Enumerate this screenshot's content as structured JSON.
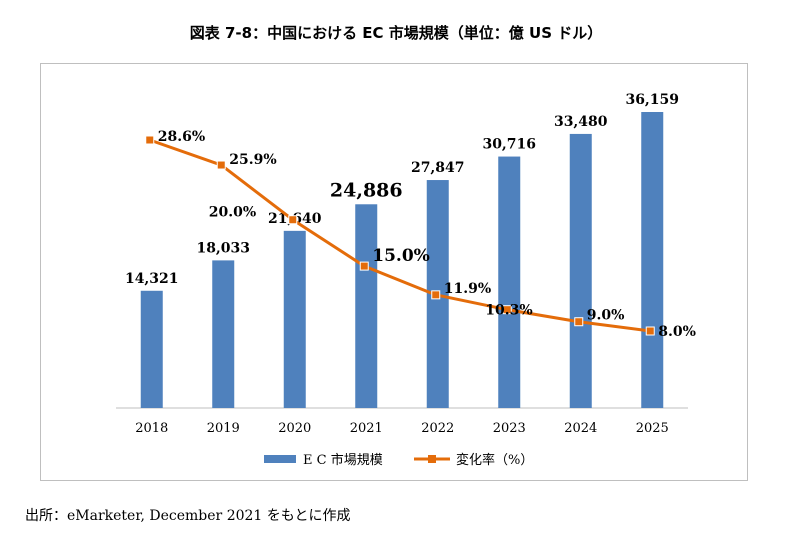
{
  "chart_data": {
    "type": "bar",
    "title": "図表 7-8：中国における EC 市場規模（単位：億 US ドル）",
    "categories": [
      "2018",
      "2019",
      "2020",
      "2021",
      "2022",
      "2023",
      "2024",
      "2025"
    ],
    "series": [
      {
        "name": "E C 市場規模",
        "type": "bar",
        "values": [
          14321,
          18033,
          21640,
          24886,
          27847,
          30716,
          33480,
          36159
        ],
        "value_labels": [
          "14,321",
          "18,033",
          "21,640",
          "24,886",
          "27,847",
          "30,716",
          "33,480",
          "36,159"
        ],
        "color": "#4f81bd"
      },
      {
        "name": "変化率（%）",
        "type": "line",
        "values": [
          28.6,
          25.9,
          20.0,
          15.0,
          11.9,
          10.3,
          9.0,
          8.0
        ],
        "value_labels": [
          "28.6%",
          "25.9%",
          "20.0%",
          "15.0%",
          "11.9%",
          "10.3%",
          "9.0%",
          "8.0%"
        ],
        "color": "#e46c0a"
      }
    ],
    "xlabel": "",
    "ylabel": "",
    "legend": "bottom",
    "grid": false
  },
  "source": "出所：eMarketer, December 2021 をもとに作成"
}
